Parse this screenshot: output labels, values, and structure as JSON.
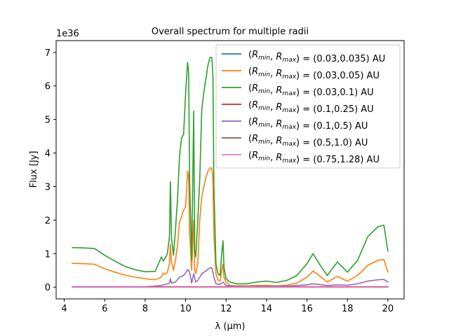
{
  "chart_data": {
    "type": "line",
    "title": "Overall spectrum for multiple radii",
    "xlabel": "λ (μm)",
    "ylabel": "Flux [Jy]",
    "y_offset_text": "1e36",
    "xlim": [
      3.6,
      20.8
    ],
    "ylim": [
      -0.35,
      7.35
    ],
    "x_ticks": [
      4,
      6,
      8,
      10,
      12,
      14,
      16,
      18,
      20
    ],
    "y_ticks": [
      0,
      1,
      2,
      3,
      4,
      5,
      6,
      7
    ],
    "grid": false,
    "legend_placement": "top-right",
    "series": [
      {
        "name": "(R_min, R_max) = (0.03,0.035) AU",
        "color": "#1f77b4",
        "x": [
          4.4,
          20.0
        ],
        "y": [
          0.0,
          0.0
        ]
      },
      {
        "name": "(R_min, R_max) = (0.03,0.05) AU",
        "color": "#ff7f0e",
        "x": [
          4.4,
          5.0,
          5.5,
          6.0,
          6.5,
          7.0,
          7.5,
          8.0,
          8.5,
          8.8,
          8.9,
          9.0,
          9.1,
          9.2,
          9.25,
          9.3,
          9.4,
          9.5,
          9.6,
          9.7,
          9.8,
          9.9,
          10.0,
          10.1,
          10.15,
          10.2,
          10.3,
          10.4,
          10.45,
          10.5,
          10.6,
          10.7,
          10.8,
          10.9,
          11.0,
          11.1,
          11.2,
          11.3,
          11.35,
          11.4,
          11.5,
          11.6,
          11.7,
          11.8,
          11.85,
          11.9,
          12.0,
          12.2,
          12.5,
          13.0,
          13.5,
          14.0,
          14.5,
          15.0,
          15.5,
          16.0,
          16.3,
          16.6,
          17.0,
          17.5,
          18.0,
          18.5,
          19.0,
          19.5,
          19.8,
          20.0
        ],
        "y": [
          0.71,
          0.7,
          0.68,
          0.55,
          0.45,
          0.36,
          0.3,
          0.25,
          0.22,
          0.3,
          0.42,
          0.38,
          0.45,
          0.7,
          1.28,
          0.75,
          0.5,
          0.8,
          1.25,
          1.95,
          2.1,
          2.3,
          2.4,
          3.46,
          3.3,
          1.6,
          0.5,
          2.0,
          0.5,
          0.4,
          0.7,
          2.0,
          2.7,
          3.0,
          3.25,
          3.45,
          3.55,
          3.55,
          3.2,
          1.6,
          0.4,
          0.22,
          0.18,
          0.55,
          0.68,
          0.3,
          0.15,
          0.05,
          0.04,
          0.04,
          0.05,
          0.05,
          0.04,
          0.06,
          0.12,
          0.3,
          0.48,
          0.35,
          0.15,
          0.32,
          0.18,
          0.35,
          0.65,
          0.8,
          0.82,
          0.45
        ]
      },
      {
        "name": "(R_min, R_max) = (0.03,0.1) AU",
        "color": "#2ca02c",
        "x": [
          4.4,
          5.0,
          5.5,
          6.0,
          6.5,
          7.0,
          7.5,
          8.0,
          8.5,
          8.8,
          8.9,
          9.0,
          9.1,
          9.2,
          9.25,
          9.3,
          9.4,
          9.5,
          9.6,
          9.7,
          9.8,
          9.9,
          10.0,
          10.1,
          10.15,
          10.2,
          10.3,
          10.4,
          10.45,
          10.5,
          10.6,
          10.7,
          10.8,
          10.9,
          11.0,
          11.1,
          11.2,
          11.3,
          11.35,
          11.4,
          11.5,
          11.6,
          11.7,
          11.8,
          11.85,
          11.9,
          12.0,
          12.2,
          12.5,
          13.0,
          13.5,
          14.0,
          14.5,
          15.0,
          15.5,
          16.0,
          16.3,
          16.6,
          17.0,
          17.5,
          18.0,
          18.5,
          19.0,
          19.5,
          19.8,
          20.0
        ],
        "y": [
          1.18,
          1.17,
          1.15,
          0.95,
          0.78,
          0.62,
          0.52,
          0.46,
          0.47,
          0.9,
          0.78,
          0.88,
          1.0,
          1.5,
          3.14,
          1.5,
          0.95,
          1.7,
          2.6,
          3.9,
          4.45,
          4.55,
          5.8,
          6.7,
          6.4,
          3.2,
          0.8,
          5.25,
          1.1,
          0.9,
          2.0,
          3.2,
          5.3,
          5.8,
          6.2,
          6.6,
          6.85,
          6.85,
          6.3,
          3.0,
          0.7,
          0.4,
          0.35,
          1.1,
          1.38,
          0.6,
          0.25,
          0.15,
          0.1,
          0.1,
          0.15,
          0.18,
          0.14,
          0.2,
          0.35,
          0.7,
          1.0,
          0.7,
          0.35,
          0.75,
          0.45,
          0.8,
          1.5,
          1.8,
          1.85,
          1.07
        ]
      },
      {
        "name": "(R_min, R_max) = (0.1,0.25) AU",
        "color": "#d62728",
        "x": [
          4.4,
          20.0
        ],
        "y": [
          0.01,
          0.01
        ]
      },
      {
        "name": "(R_min, R_max) = (0.1,0.5) AU",
        "color": "#9467bd",
        "x": [
          4.4,
          5.0,
          6.0,
          7.0,
          8.0,
          8.8,
          9.0,
          9.2,
          9.25,
          9.3,
          9.5,
          9.7,
          9.9,
          10.0,
          10.1,
          10.2,
          10.3,
          10.4,
          10.5,
          10.6,
          10.8,
          11.0,
          11.2,
          11.3,
          11.4,
          11.5,
          11.7,
          11.85,
          12.0,
          12.5,
          13.0,
          14.0,
          15.0,
          15.5,
          16.0,
          16.3,
          16.6,
          17.0,
          17.5,
          18.0,
          18.5,
          19.0,
          19.5,
          19.8,
          20.0
        ],
        "y": [
          0.01,
          0.01,
          0.01,
          0.01,
          0.01,
          0.05,
          0.08,
          0.12,
          0.25,
          0.12,
          0.15,
          0.3,
          0.35,
          0.42,
          0.52,
          0.45,
          0.12,
          0.4,
          0.15,
          0.2,
          0.4,
          0.48,
          0.58,
          0.58,
          0.3,
          0.1,
          0.08,
          0.15,
          0.05,
          0.02,
          0.02,
          0.02,
          0.03,
          0.05,
          0.07,
          0.1,
          0.08,
          0.05,
          0.07,
          0.06,
          0.1,
          0.18,
          0.22,
          0.23,
          0.15
        ]
      },
      {
        "name": "(R_min, R_max) = (0.5,1.0) AU",
        "color": "#8c564b",
        "x": [
          4.4,
          20.0
        ],
        "y": [
          0.0,
          0.0
        ]
      },
      {
        "name": "(R_min, R_max) = (0.75,1.28) AU",
        "color": "#e377c2",
        "x": [
          4.4,
          20.0
        ],
        "y": [
          0.0,
          0.0
        ]
      }
    ],
    "legend": [
      {
        "prefix": "(",
        "r1": "R",
        "s1": "min",
        "mid": ", ",
        "r2": "R",
        "s2": "max",
        "suffix": ") = (0.03,0.035) AU",
        "color": "#1f77b4"
      },
      {
        "prefix": "(",
        "r1": "R",
        "s1": "min",
        "mid": ", ",
        "r2": "R",
        "s2": "max",
        "suffix": ") = (0.03,0.05) AU",
        "color": "#ff7f0e"
      },
      {
        "prefix": "(",
        "r1": "R",
        "s1": "min",
        "mid": ", ",
        "r2": "R",
        "s2": "max",
        "suffix": ") = (0.03,0.1) AU",
        "color": "#2ca02c"
      },
      {
        "prefix": "(",
        "r1": "R",
        "s1": "min",
        "mid": ", ",
        "r2": "R",
        "s2": "max",
        "suffix": ") = (0.1,0.25) AU",
        "color": "#d62728"
      },
      {
        "prefix": "(",
        "r1": "R",
        "s1": "min",
        "mid": ", ",
        "r2": "R",
        "s2": "max",
        "suffix": ") = (0.1,0.5) AU",
        "color": "#9467bd"
      },
      {
        "prefix": "(",
        "r1": "R",
        "s1": "min",
        "mid": ", ",
        "r2": "R",
        "s2": "max",
        "suffix": ") = (0.5,1.0) AU",
        "color": "#8c564b"
      },
      {
        "prefix": "(",
        "r1": "R",
        "s1": "min",
        "mid": ", ",
        "r2": "R",
        "s2": "max",
        "suffix": ") = (0.75,1.28) AU",
        "color": "#e377c2"
      }
    ]
  }
}
